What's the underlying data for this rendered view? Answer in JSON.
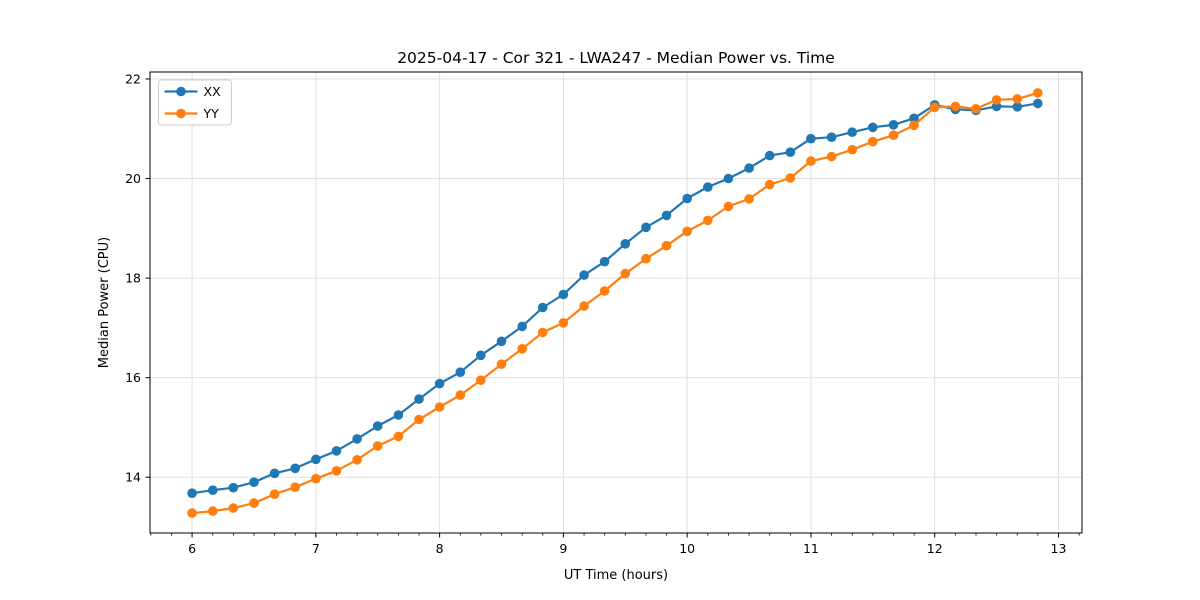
{
  "figure": {
    "background": "#ffffff",
    "spine_color": "#000000",
    "grid_color": "#e0e0e0",
    "tick_color": "#000000"
  },
  "chart_data": {
    "type": "line",
    "title": "2025-04-17 - Cor 321 - LWA247 - Median Power vs. Time",
    "xlabel": "UT Time (hours)",
    "ylabel": "Median Power (CPU)",
    "xlim": [
      5.66,
      13.19
    ],
    "ylim": [
      12.88,
      22.14
    ],
    "xticks": [
      6,
      7,
      8,
      9,
      10,
      11,
      12,
      13
    ],
    "yticks": [
      14,
      16,
      18,
      20,
      22
    ],
    "x_minor_step": 0.16667,
    "grid": true,
    "legend": {
      "position": "upper-left",
      "entries": [
        "XX",
        "YY"
      ]
    },
    "x": [
      6.0,
      6.167,
      6.333,
      6.5,
      6.667,
      6.833,
      7.0,
      7.167,
      7.333,
      7.5,
      7.667,
      7.833,
      8.0,
      8.167,
      8.333,
      8.5,
      8.667,
      8.833,
      9.0,
      9.167,
      9.333,
      9.5,
      9.667,
      9.833,
      10.0,
      10.167,
      10.333,
      10.5,
      10.667,
      10.833,
      11.0,
      11.167,
      11.333,
      11.5,
      11.667,
      11.833,
      12.0,
      12.167,
      12.333,
      12.5,
      12.667,
      12.833
    ],
    "series": [
      {
        "name": "XX",
        "color": "#1f77b4",
        "values": [
          13.68,
          13.74,
          13.79,
          13.9,
          14.08,
          14.18,
          14.36,
          14.53,
          14.77,
          15.03,
          15.25,
          15.57,
          15.88,
          16.11,
          16.45,
          16.73,
          17.03,
          17.41,
          17.67,
          18.06,
          18.33,
          18.69,
          19.02,
          19.26,
          19.6,
          19.83,
          20.0,
          20.21,
          20.46,
          20.53,
          20.8,
          20.83,
          20.93,
          21.03,
          21.08,
          21.21,
          21.48,
          21.39,
          21.37,
          21.45,
          21.44,
          21.51
        ]
      },
      {
        "name": "YY",
        "color": "#ff7f0e",
        "values": [
          13.28,
          13.32,
          13.38,
          13.48,
          13.66,
          13.8,
          13.97,
          14.13,
          14.35,
          14.63,
          14.82,
          15.16,
          15.41,
          15.65,
          15.95,
          16.27,
          16.58,
          16.91,
          17.1,
          17.44,
          17.74,
          18.09,
          18.39,
          18.65,
          18.94,
          19.16,
          19.44,
          19.59,
          19.88,
          20.01,
          20.35,
          20.44,
          20.58,
          20.74,
          20.87,
          21.07,
          21.43,
          21.45,
          21.4,
          21.58,
          21.6,
          21.72
        ]
      }
    ]
  }
}
